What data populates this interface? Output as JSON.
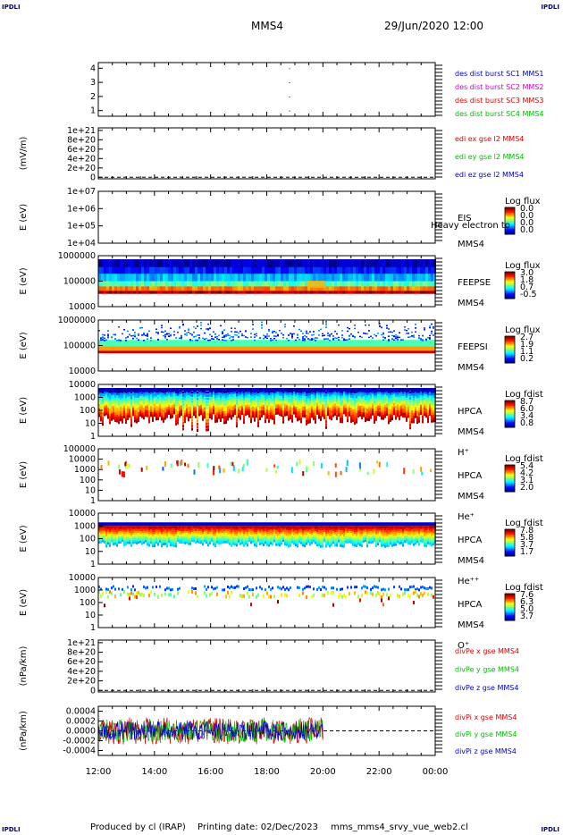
{
  "corners": {
    "tl": "IPDLI",
    "tr": "IPDLI",
    "bl": "IPDLI",
    "br": "IPDLI"
  },
  "header": {
    "spacecraft": "MMS4",
    "datetime": "29/Jun/2020 12:00"
  },
  "footer": {
    "producer": "Produced by cl (IRAP)",
    "printing_date": "Printing date: 02/Dec/2023",
    "filename": "mms_mms4_srvy_vue_web2.cl"
  },
  "colors": {
    "black": "#000000",
    "red": "#dd0000",
    "green": "#00bb00",
    "blue": "#0000cc",
    "magenta": "#cc00cc",
    "dashed": "#000000"
  },
  "chart_data": [
    {
      "type": "scatter",
      "id": "des_dist",
      "yticks": [
        "1",
        "2",
        "3",
        "4"
      ],
      "ylim": [
        0.6,
        4.4
      ],
      "legend": [
        {
          "text": "des dist burst SC1 MMS1",
          "color": "#0000cc"
        },
        {
          "text": "des dist burst SC2 MMS2",
          "color": "#cc00cc"
        },
        {
          "text": "des dist burst SC3 MMS3",
          "color": "#dd0000"
        },
        {
          "text": "des dist burst SC4 MMS4",
          "color": "#00bb00"
        }
      ],
      "points": [
        {
          "t": 18.8,
          "y": 1.0
        },
        {
          "t": 18.8,
          "y": 2.0
        },
        {
          "t": 18.8,
          "y": 3.0
        },
        {
          "t": 18.8,
          "y": 4.0
        }
      ]
    },
    {
      "type": "line",
      "id": "edi",
      "ylabel": "(mV/m)",
      "yticks": [
        "0",
        "2e+20",
        "4e+20",
        "6e+20",
        "8e+20",
        "1e+21"
      ],
      "ylim": [
        0,
        1e+21
      ],
      "legend": [
        {
          "text": "edi ex gse l2 MMS4",
          "color": "#dd0000"
        },
        {
          "text": "edi ey gse l2 MMS4",
          "color": "#00bb00"
        },
        {
          "text": "edi ez gse l2 MMS4",
          "color": "#0000cc"
        }
      ],
      "zero_line": true
    },
    {
      "type": "heatmap",
      "id": "eis",
      "ylabel": "E (eV)",
      "yticks": [
        "1e+04",
        "1e+05",
        "1e+06",
        "1e+07"
      ],
      "side_labels": [
        "EIS",
        "MMS4"
      ],
      "overlay_label": "Heavy electron to",
      "colorbar": {
        "title": "Log flux",
        "ticks": [
          "0.0",
          "0.0",
          "0.0",
          "0.0"
        ]
      },
      "fill": "none"
    },
    {
      "type": "heatmap",
      "id": "feepse",
      "ylabel": "E (eV)",
      "yticks": [
        "10000",
        "100000",
        "1000000"
      ],
      "side_labels": [
        "FEEPSE",
        "MMS4"
      ],
      "colorbar": {
        "title": "Log flux",
        "ticks": [
          "3.0",
          "1.8",
          "0.7",
          "-0.5"
        ]
      },
      "fill": "electron"
    },
    {
      "type": "heatmap",
      "id": "feepsi",
      "ylabel": "E (eV)",
      "yticks": [
        "10000",
        "100000",
        "1000000"
      ],
      "side_labels": [
        "FEEPSI",
        "MMS4"
      ],
      "colorbar": {
        "title": "Log flux",
        "ticks": [
          "2.7",
          "1.9",
          "1.1",
          "0.2"
        ]
      },
      "fill": "ion"
    },
    {
      "type": "heatmap",
      "id": "hpca_h",
      "ylabel": "E (eV)",
      "yticks": [
        "1",
        "10",
        "100",
        "1000",
        "10000"
      ],
      "side_labels": [
        "HPCA",
        "MMS4",
        "H⁺"
      ],
      "colorbar": {
        "title": "Log fdist",
        "ticks": [
          "8.7",
          "6.0",
          "3.4",
          "0.8"
        ]
      },
      "fill": "hplus"
    },
    {
      "type": "heatmap",
      "id": "hpca_he",
      "ylabel": "E (eV)",
      "yticks": [
        "1",
        "10",
        "100",
        "1000",
        "10000",
        "100000"
      ],
      "side_labels": [
        "HPCA",
        "MMS4",
        "He⁺"
      ],
      "colorbar": {
        "title": "Log fdist",
        "ticks": [
          "5.4",
          "4.2",
          "3.1",
          "2.0"
        ]
      },
      "fill": "sparse"
    },
    {
      "type": "heatmap",
      "id": "hpca_hepp",
      "ylabel": "E (eV)",
      "yticks": [
        "1",
        "10",
        "100",
        "1000",
        "10000"
      ],
      "side_labels": [
        "HPCA",
        "MMS4",
        "He⁺⁺"
      ],
      "colorbar": {
        "title": "Log fdist",
        "ticks": [
          "7.8",
          "5.8",
          "3.7",
          "1.7"
        ]
      },
      "fill": "heplusplus"
    },
    {
      "type": "heatmap",
      "id": "hpca_o",
      "ylabel": "E (eV)",
      "yticks": [
        "1",
        "10",
        "100",
        "1000",
        "10000"
      ],
      "side_labels": [
        "HPCA",
        "MMS4",
        "O⁺"
      ],
      "colorbar": {
        "title": "Log fdist",
        "ticks": [
          "7.6",
          "6.3",
          "5.0",
          "3.7"
        ]
      },
      "fill": "oplus"
    },
    {
      "type": "line",
      "id": "divpe",
      "ylabel": "(nPa/km)",
      "yticks": [
        "0",
        "2e+20",
        "4e+20",
        "6e+20",
        "8e+20",
        "1e+21"
      ],
      "ylim": [
        0,
        1e+21
      ],
      "legend": [
        {
          "text": "divPe x gse MMS4",
          "color": "#dd0000"
        },
        {
          "text": "divPe y gse MMS4",
          "color": "#00bb00"
        },
        {
          "text": "divPe z gse MMS4",
          "color": "#0000cc"
        }
      ],
      "zero_line": true
    },
    {
      "type": "line",
      "id": "divpi",
      "ylabel": "(nPa/km)",
      "yticks": [
        "-0.0004",
        "-0.0002",
        "0.0000",
        "0.0002",
        "0.0004"
      ],
      "ylim": [
        -0.0005,
        0.0005
      ],
      "legend": [
        {
          "text": "divPi x gse MMS4",
          "color": "#dd0000"
        },
        {
          "text": "divPi y gse MMS4",
          "color": "#00bb00"
        },
        {
          "text": "divPi z gse MMS4",
          "color": "#0000cc"
        }
      ],
      "data_until": "20:00",
      "zero_line": true
    }
  ],
  "xaxis": {
    "ticks": [
      "12:00",
      "14:00",
      "16:00",
      "18:00",
      "20:00",
      "22:00",
      "00:00"
    ],
    "range_hours": [
      12,
      24
    ]
  }
}
